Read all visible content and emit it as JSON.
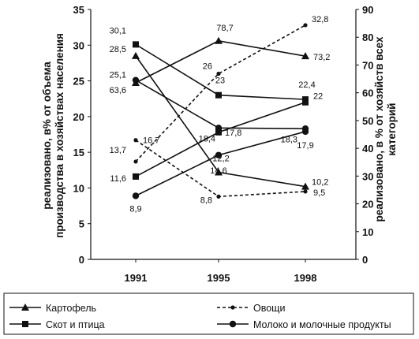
{
  "chart_data": {
    "type": "line",
    "x": [
      "1991",
      "1995",
      "1998"
    ],
    "left_axis": {
      "label_lines": [
        "реализовано, в% от объема",
        "производства в хозяйствах населения"
      ],
      "ylim": [
        0,
        35
      ],
      "ticks": [
        "0",
        "5",
        "10",
        "15",
        "20",
        "25",
        "30",
        "35"
      ]
    },
    "right_axis": {
      "label_lines": [
        "реализовано, в % от хозяйств всех",
        "категорий"
      ],
      "ylim": [
        0,
        90
      ],
      "ticks": [
        "0",
        "10",
        "20",
        "30",
        "40",
        "50",
        "60",
        "70",
        "80",
        "90"
      ]
    },
    "series": [
      {
        "name": "Картофель",
        "marker": "triangle",
        "dash": "solid",
        "axis": "left",
        "values": [
          28.5,
          12.2,
          10.2
        ]
      },
      {
        "name": "Картофель",
        "marker": "triangle",
        "dash": "solid",
        "axis": "right",
        "values": [
          63.6,
          78.7,
          73.2
        ]
      },
      {
        "name": "Скот и птица",
        "marker": "square",
        "dash": "solid",
        "axis": "left",
        "values": [
          30.1,
          23,
          22.4
        ]
      },
      {
        "name": "Скот и птица",
        "marker": "square",
        "dash": "solid",
        "axis": "left",
        "values": [
          11.6,
          17.8,
          22
        ]
      },
      {
        "name": "Молоко и молочные продукты",
        "marker": "circle",
        "dash": "solid",
        "axis": "left",
        "values": [
          25.1,
          18.4,
          18.3
        ]
      },
      {
        "name": "Молоко и молочные продукты",
        "marker": "circle",
        "dash": "solid",
        "axis": "left",
        "values": [
          8.9,
          14.6,
          17.9
        ]
      },
      {
        "name": "Овощи",
        "marker": "dot",
        "dash": "dashed",
        "axis": "left",
        "values": [
          16.7,
          8.8,
          9.5
        ]
      },
      {
        "name": "Овощи",
        "marker": "dot",
        "dash": "dashed",
        "axis": "left",
        "values": [
          13.7,
          26,
          32.8
        ]
      }
    ],
    "data_labels": [
      {
        "text": "30,1",
        "series": 2,
        "point": 0,
        "anchor": "end",
        "dx": -12,
        "dy": -14
      },
      {
        "text": "28,5",
        "series": 0,
        "point": 0,
        "anchor": "end",
        "dx": -12,
        "dy": -5
      },
      {
        "text": "25,1",
        "series": 4,
        "point": 0,
        "anchor": "end",
        "dx": -12,
        "dy": -3
      },
      {
        "text": "63,6",
        "series": 1,
        "point": 0,
        "anchor": "end",
        "dx": -12,
        "dy": 13
      },
      {
        "text": "16,7",
        "series": 6,
        "point": 0,
        "anchor": "start",
        "dx": 9,
        "dy": 4
      },
      {
        "text": "13,7",
        "series": 7,
        "point": 0,
        "anchor": "end",
        "dx": -12,
        "dy": -11
      },
      {
        "text": "11,6",
        "series": 3,
        "point": 0,
        "anchor": "end",
        "dx": -12,
        "dy": 6
      },
      {
        "text": "8,9",
        "series": 5,
        "point": 0,
        "anchor": "middle",
        "dx": 0,
        "dy": 20
      },
      {
        "text": "78,7",
        "series": 1,
        "point": 1,
        "anchor": "middle",
        "dx": 8,
        "dy": -13
      },
      {
        "text": "23",
        "series": 2,
        "point": 1,
        "anchor": "middle",
        "dx": 2,
        "dy": -15
      },
      {
        "text": "18,4",
        "series": 4,
        "point": 1,
        "anchor": "end",
        "dx": -4,
        "dy": 17
      },
      {
        "text": "12,2",
        "series": 0,
        "point": 1,
        "anchor": "middle",
        "dx": 3,
        "dy": -14
      },
      {
        "text": "26",
        "series": 7,
        "point": 1,
        "anchor": "end",
        "dx": -8,
        "dy": -6
      },
      {
        "text": "8,8",
        "series": 6,
        "point": 1,
        "anchor": "end",
        "dx": -8,
        "dy": 8
      },
      {
        "text": "17,8",
        "series": 3,
        "point": 1,
        "anchor": "start",
        "dx": 8,
        "dy": 4
      },
      {
        "text": "14,6",
        "series": 5,
        "point": 1,
        "anchor": "middle",
        "dx": 0,
        "dy": 23
      },
      {
        "text": "73,2",
        "series": 1,
        "point": 2,
        "anchor": "start",
        "dx": 10,
        "dy": 5
      },
      {
        "text": "22,4",
        "series": 2,
        "point": 2,
        "anchor": "middle",
        "dx": 2,
        "dy": -15
      },
      {
        "text": "18,3",
        "series": 4,
        "point": 2,
        "anchor": "end",
        "dx": -10,
        "dy": 17
      },
      {
        "text": "32,8",
        "series": 7,
        "point": 2,
        "anchor": "start",
        "dx": 8,
        "dy": -4
      },
      {
        "text": "10,2",
        "series": 0,
        "point": 2,
        "anchor": "start",
        "dx": 8,
        "dy": -2
      },
      {
        "text": "9,5",
        "series": 6,
        "point": 2,
        "anchor": "start",
        "dx": 10,
        "dy": 5
      },
      {
        "text": "22",
        "series": 3,
        "point": 2,
        "anchor": "start",
        "dx": 10,
        "dy": -4
      },
      {
        "text": "17,9",
        "series": 5,
        "point": 2,
        "anchor": "middle",
        "dx": 0,
        "dy": 21
      }
    ],
    "legend": [
      {
        "label": "Картофель",
        "marker": "triangle",
        "dash": "solid"
      },
      {
        "label": "Овощи",
        "marker": "dot",
        "dash": "dashed"
      },
      {
        "label": "Скот и птица",
        "marker": "square",
        "dash": "solid"
      },
      {
        "label": "Молоко и молочные продукты",
        "marker": "circle",
        "dash": "solid"
      }
    ],
    "legend_position": "bottom",
    "grid": false
  }
}
